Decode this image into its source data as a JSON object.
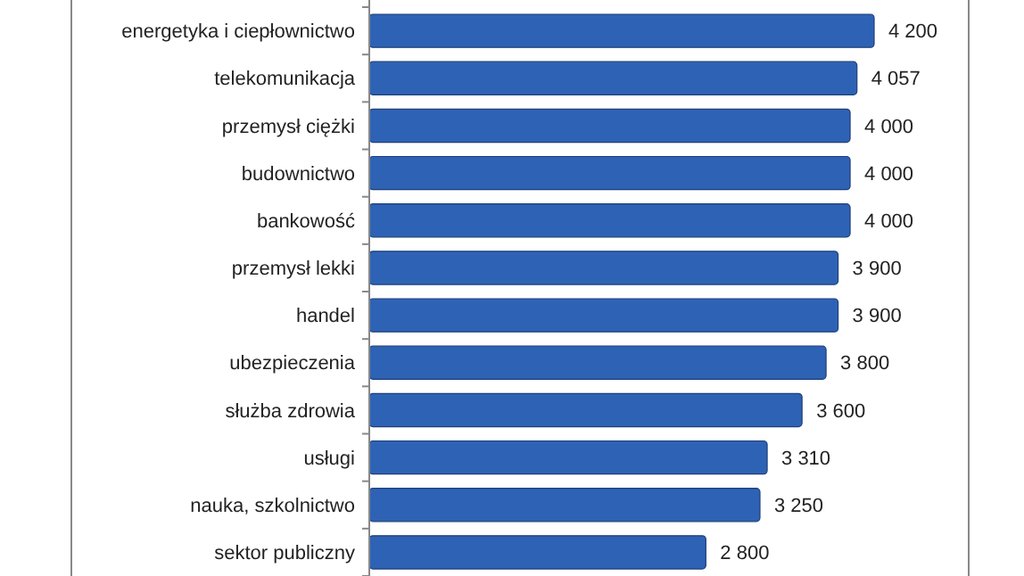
{
  "chart_data": {
    "type": "bar",
    "orientation": "horizontal",
    "categories": [
      "energetyka i ciepłownictwo",
      "telekomunikacja",
      "przemysł ciężki",
      "budownictwo",
      "bankowość",
      "przemysł lekki",
      "handel",
      "ubezpieczenia",
      "służba zdrowia",
      "usługi",
      "nauka, szkolnictwo",
      "sektor publiczny"
    ],
    "values": [
      4200,
      4057,
      4000,
      4000,
      4000,
      3900,
      3900,
      3800,
      3600,
      3310,
      3250,
      2800
    ],
    "value_labels": [
      "4 200",
      "4 057",
      "4 000",
      "4 000",
      "4 000",
      "3 900",
      "3 900",
      "3 800",
      "3 600",
      "3 310",
      "3 250",
      "2 800"
    ],
    "color": "#2e62b4"
  }
}
